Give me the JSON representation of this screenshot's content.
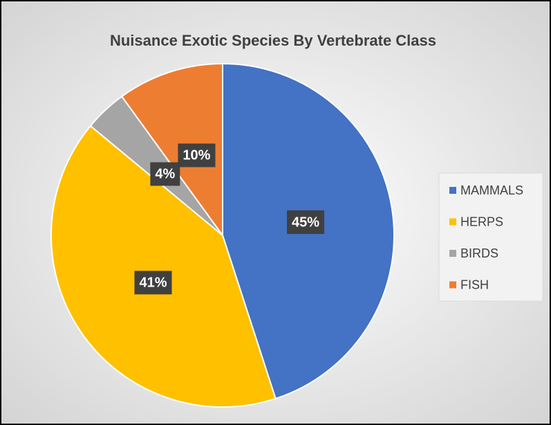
{
  "chart_data": {
    "type": "pie",
    "title": "Nuisance Exotic Species By Vertebrate Class",
    "categories": [
      "MAMMALS",
      "HERPS",
      "BIRDS",
      "FISH"
    ],
    "values": [
      45,
      41,
      4,
      10
    ],
    "value_labels": [
      "45%",
      "41%",
      "4%",
      "10%"
    ],
    "colors": [
      "#4472c4",
      "#ffc000",
      "#a5a5a5",
      "#ed7d31"
    ],
    "legend": "right"
  }
}
